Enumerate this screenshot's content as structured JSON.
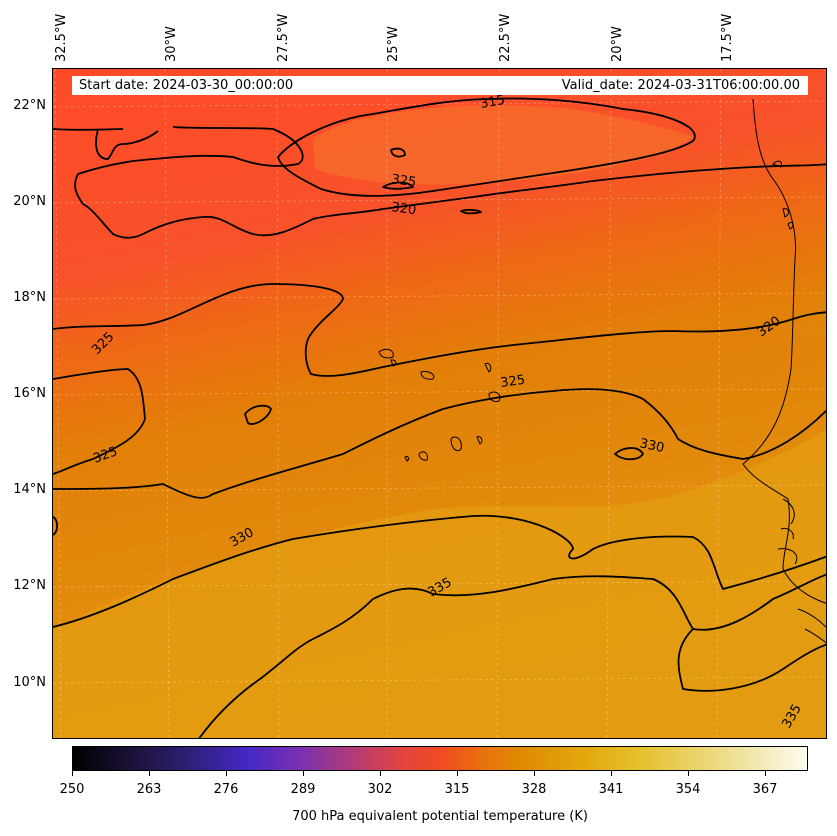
{
  "header": {
    "start_date": "Start date: 2024-03-30_00:00:00",
    "valid_date": "Valid_date: 2024-03-31T06:00:00.00"
  },
  "lon_labels": [
    "32.5°W",
    "30°W",
    "27.5°W",
    "25°W",
    "22.5°W",
    "20°W",
    "17.5°W"
  ],
  "lat_labels": [
    "22°N",
    "20°N",
    "18°N",
    "16°N",
    "14°N",
    "12°N",
    "10°N"
  ],
  "contour_labels": [
    "315",
    "320",
    "325",
    "325",
    "320",
    "325",
    "325",
    "330",
    "330",
    "335",
    "335"
  ],
  "colorbar": {
    "ticks": [
      "250",
      "263",
      "276",
      "289",
      "302",
      "315",
      "328",
      "341",
      "354",
      "367"
    ],
    "label": "700 hPa equivalent potential temperature (K)"
  },
  "colors": {
    "warm_red": "#ff4b28",
    "orange": "#e27f08",
    "yellow": "#e3a814",
    "contour": "#000000"
  }
}
